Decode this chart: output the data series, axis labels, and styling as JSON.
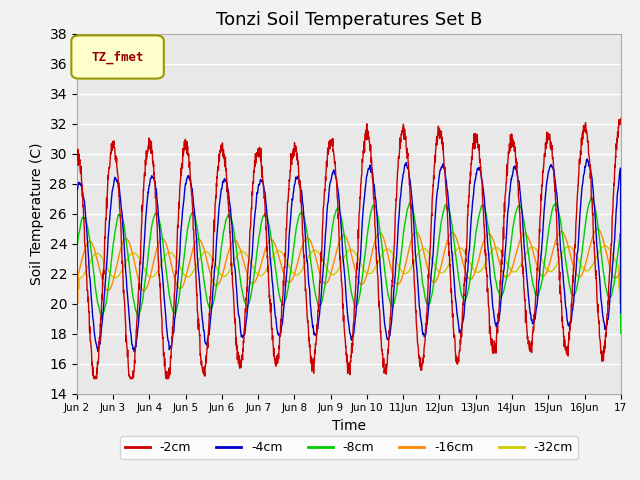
{
  "title": "Tonzi Soil Temperatures Set B",
  "xlabel": "Time",
  "ylabel": "Soil Temperature (C)",
  "ylim": [
    14,
    38
  ],
  "yticks": [
    14,
    16,
    18,
    20,
    22,
    24,
    26,
    28,
    30,
    32,
    34,
    36,
    38
  ],
  "legend_label": "TZ_fmet",
  "series_labels": [
    "-2cm",
    "-4cm",
    "-8cm",
    "-16cm",
    "-32cm"
  ],
  "series_colors": [
    "#cc0000",
    "#0000cc",
    "#00cc00",
    "#ff8800",
    "#cccc00"
  ],
  "plot_bg_color": "#e8e8e8",
  "fig_bg_color": "#f2f2f2",
  "line_width": 1.0,
  "xtick_labels": [
    "Jun 2",
    "Jun 3",
    "Jun 4",
    "Jun 5",
    "Jun 6",
    "Jun 7",
    "Jun 8",
    "Jun 9",
    "Jun 10",
    "11Jun",
    "12Jun",
    "13Jun",
    "14Jun",
    "15Jun",
    "16Jun",
    "17"
  ],
  "n_days": 15,
  "pts_per_day": 144,
  "base_mean": 22.5,
  "seed": 123
}
